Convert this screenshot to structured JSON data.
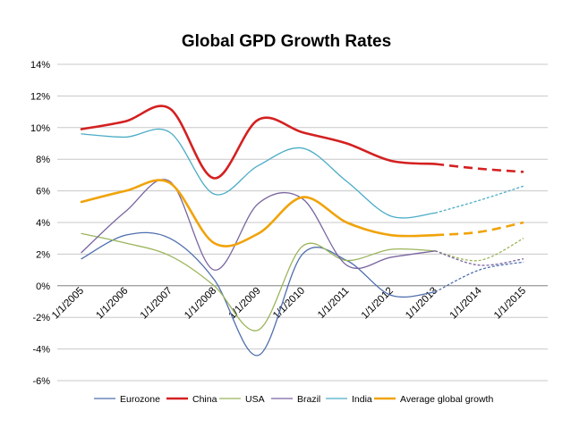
{
  "chart_data": {
    "type": "line",
    "title": "Global GPD Growth Rates",
    "xlabel": "",
    "ylabel": "",
    "ylim": [
      -0.06,
      0.14
    ],
    "ytick_step": 0.02,
    "y_tick_labels": [
      "14%",
      "12%",
      "10%",
      "8%",
      "6%",
      "4%",
      "2%",
      "0%",
      "-2%",
      "-4%",
      "-6%"
    ],
    "categories": [
      "1/1/2005",
      "1/1/2006",
      "1/1/2007",
      "1/1/2008",
      "1/1/2009",
      "1/1/2010",
      "1/1/2011",
      "1/1/2012",
      "1/1/2013",
      "1/1/2014",
      "1/1/2015"
    ],
    "grid": true,
    "legend_position": "bottom",
    "forecast_from_index": 8,
    "series": [
      {
        "name": "Eurozone",
        "color": "#4F6FAE",
        "width": 1.3,
        "values": [
          0.017,
          0.032,
          0.03,
          0.004,
          -0.044,
          0.02,
          0.016,
          -0.006,
          -0.004,
          0.01,
          0.015
        ]
      },
      {
        "name": "China",
        "color": "#D42020",
        "width": 2.6,
        "values": [
          0.099,
          0.104,
          0.112,
          0.068,
          0.105,
          0.097,
          0.09,
          0.079,
          0.077,
          0.074,
          0.072
        ]
      },
      {
        "name": "USA",
        "color": "#9BB55A",
        "width": 1.3,
        "values": [
          0.033,
          0.027,
          0.019,
          0.0,
          -0.028,
          0.025,
          0.016,
          0.023,
          0.022,
          0.016,
          0.03
        ]
      },
      {
        "name": "Brazil",
        "color": "#7A65A0",
        "width": 1.3,
        "values": [
          0.021,
          0.047,
          0.066,
          0.01,
          0.052,
          0.055,
          0.013,
          0.018,
          0.022,
          0.013,
          0.017
        ]
      },
      {
        "name": "India",
        "color": "#4BACC6",
        "width": 1.3,
        "values": [
          0.096,
          0.094,
          0.097,
          0.058,
          0.076,
          0.087,
          0.066,
          0.044,
          0.046,
          0.054,
          0.063
        ]
      },
      {
        "name": "Average global growth",
        "color": "#F0A30A",
        "width": 2.6,
        "values": [
          0.053,
          0.06,
          0.065,
          0.027,
          0.033,
          0.056,
          0.04,
          0.032,
          0.032,
          0.034,
          0.04
        ]
      }
    ]
  }
}
